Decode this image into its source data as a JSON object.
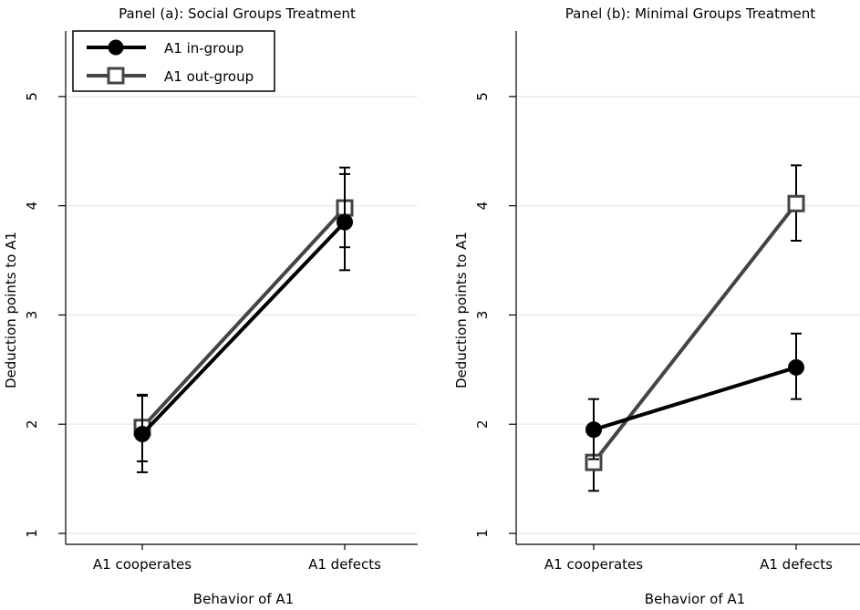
{
  "chart_data": [
    {
      "type": "line",
      "title": "Panel (a): Social Groups Treatment",
      "xlabel": "Behavior of A1",
      "ylabel": "Deduction points to A1",
      "categories": [
        "A1 cooperates",
        "A1 defects"
      ],
      "yticks": [
        "1",
        "2",
        "3",
        "4",
        "5"
      ],
      "ylim": [
        0.9,
        5.6
      ],
      "grid": true,
      "legend_position": "top-left",
      "series": [
        {
          "name": "A1 in-group",
          "marker": "filled-circle",
          "color": "#000000",
          "values": [
            1.91,
            3.85
          ],
          "ci_low": [
            1.56,
            3.41
          ],
          "ci_high": [
            2.26,
            4.29
          ]
        },
        {
          "name": "A1 out-group",
          "marker": "hollow-square",
          "color": "#444444",
          "values": [
            1.97,
            3.98
          ],
          "ci_low": [
            1.66,
            3.62
          ],
          "ci_high": [
            2.27,
            4.35
          ]
        }
      ]
    },
    {
      "type": "line",
      "title": "Panel (b): Minimal Groups Treatment",
      "xlabel": "Behavior of A1",
      "ylabel": "Deduction points to A1",
      "categories": [
        "A1 cooperates",
        "A1 defects"
      ],
      "yticks": [
        "1",
        "2",
        "3",
        "4",
        "5"
      ],
      "ylim": [
        0.9,
        5.6
      ],
      "grid": true,
      "series": [
        {
          "name": "A1 in-group",
          "marker": "filled-circle",
          "color": "#000000",
          "values": [
            1.95,
            2.52
          ],
          "ci_low": [
            1.68,
            2.23
          ],
          "ci_high": [
            2.23,
            2.83
          ]
        },
        {
          "name": "A1 out-group",
          "marker": "hollow-square",
          "color": "#444444",
          "values": [
            1.65,
            4.02
          ],
          "ci_low": [
            1.39,
            3.68
          ],
          "ci_high": [
            1.9,
            4.37
          ]
        }
      ]
    }
  ]
}
